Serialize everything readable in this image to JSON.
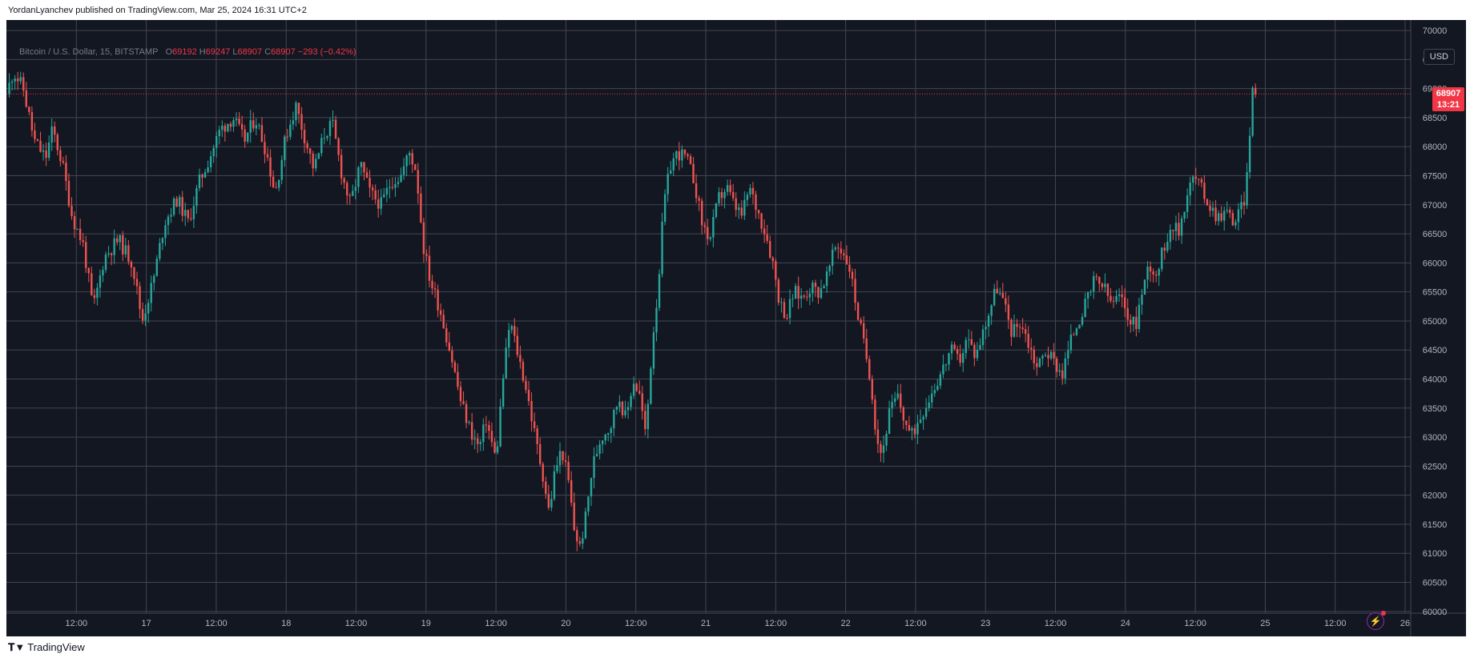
{
  "attribution": "YordanLyanchev published on TradingView.com, Mar 25, 2024 16:31 UTC+2",
  "legend": {
    "symbol": "Bitcoin / U.S. Dollar, 15, BITSTAMP",
    "open_label": "O",
    "open": "69192",
    "high_label": "H",
    "high": "69247",
    "low_label": "L",
    "low": "68907",
    "close_label": "C",
    "close": "68907",
    "change": "−293 (−0.42%)"
  },
  "currency_button": "USD",
  "price_badge": {
    "price": "68907",
    "countdown": "13:21"
  },
  "logo_text": "TradingView",
  "icons": {
    "logo": "tradingview-logo-icon",
    "bolt": "lightning-icon"
  },
  "colors": {
    "background": "#131722",
    "grid": "#434651",
    "up": "#26a69a",
    "down": "#ef5350",
    "axis_text": "#b2b5be",
    "last_price": "#f23645"
  },
  "chart_data": {
    "type": "candlestick",
    "title": "Bitcoin / U.S. Dollar, 15, BITSTAMP",
    "xlabel": "",
    "ylabel": "",
    "ylim": [
      59970,
      70180
    ],
    "grid": true,
    "y_ticks": [
      "60000",
      "60500",
      "61000",
      "61500",
      "62000",
      "62500",
      "63000",
      "63500",
      "64000",
      "64500",
      "65000",
      "65500",
      "66000",
      "66500",
      "67000",
      "67500",
      "68000",
      "68500",
      "69000",
      "69500",
      "70000"
    ],
    "x_ticks": [
      {
        "t": 0.5,
        "label": "12:00"
      },
      {
        "t": 1.0,
        "label": "17"
      },
      {
        "t": 1.5,
        "label": "12:00"
      },
      {
        "t": 2.0,
        "label": "18"
      },
      {
        "t": 2.5,
        "label": "12:00"
      },
      {
        "t": 3.0,
        "label": "19"
      },
      {
        "t": 3.5,
        "label": "12:00"
      },
      {
        "t": 4.0,
        "label": "20"
      },
      {
        "t": 4.5,
        "label": "12:00"
      },
      {
        "t": 5.0,
        "label": "21"
      },
      {
        "t": 5.5,
        "label": "12:00"
      },
      {
        "t": 6.0,
        "label": "22"
      },
      {
        "t": 6.5,
        "label": "12:00"
      },
      {
        "t": 7.0,
        "label": "23"
      },
      {
        "t": 7.5,
        "label": "12:00"
      },
      {
        "t": 8.0,
        "label": "24"
      },
      {
        "t": 8.5,
        "label": "12:00"
      },
      {
        "t": 9.0,
        "label": "25"
      },
      {
        "t": 9.5,
        "label": "12:00"
      },
      {
        "t": 10.0,
        "label": "26"
      }
    ],
    "x_range": [
      0.0,
      10.04
    ],
    "last_price": 68907,
    "series": [
      {
        "name": "BTC/USD close path",
        "points": [
          [
            0.0,
            68900
          ],
          [
            0.05,
            69300
          ],
          [
            0.12,
            69000
          ],
          [
            0.2,
            68100
          ],
          [
            0.28,
            67800
          ],
          [
            0.33,
            68300
          ],
          [
            0.4,
            67700
          ],
          [
            0.47,
            66800
          ],
          [
            0.55,
            66300
          ],
          [
            0.62,
            65200
          ],
          [
            0.7,
            66100
          ],
          [
            0.8,
            66400
          ],
          [
            0.9,
            66000
          ],
          [
            0.97,
            65000
          ],
          [
            1.05,
            65700
          ],
          [
            1.13,
            66700
          ],
          [
            1.22,
            67100
          ],
          [
            1.3,
            66700
          ],
          [
            1.38,
            67400
          ],
          [
            1.45,
            67800
          ],
          [
            1.53,
            68300
          ],
          [
            1.62,
            68500
          ],
          [
            1.7,
            68100
          ],
          [
            1.78,
            68500
          ],
          [
            1.86,
            67900
          ],
          [
            1.92,
            67200
          ],
          [
            2.0,
            68200
          ],
          [
            2.07,
            68700
          ],
          [
            2.14,
            68100
          ],
          [
            2.2,
            67600
          ],
          [
            2.27,
            68200
          ],
          [
            2.33,
            68400
          ],
          [
            2.4,
            67500
          ],
          [
            2.46,
            67000
          ],
          [
            2.53,
            67700
          ],
          [
            2.6,
            67200
          ],
          [
            2.68,
            67000
          ],
          [
            2.75,
            67400
          ],
          [
            2.82,
            67500
          ],
          [
            2.88,
            67900
          ],
          [
            2.93,
            67600
          ],
          [
            2.98,
            66300
          ],
          [
            3.03,
            65700
          ],
          [
            3.1,
            65200
          ],
          [
            3.18,
            64400
          ],
          [
            3.25,
            63600
          ],
          [
            3.32,
            63100
          ],
          [
            3.38,
            62800
          ],
          [
            3.43,
            63300
          ],
          [
            3.5,
            62600
          ],
          [
            3.55,
            64000
          ],
          [
            3.6,
            65000
          ],
          [
            3.66,
            64400
          ],
          [
            3.72,
            63800
          ],
          [
            3.78,
            63000
          ],
          [
            3.84,
            62300
          ],
          [
            3.88,
            61700
          ],
          [
            3.92,
            62400
          ],
          [
            3.97,
            62800
          ],
          [
            4.02,
            62200
          ],
          [
            4.06,
            61400
          ],
          [
            4.1,
            61100
          ],
          [
            4.14,
            61600
          ],
          [
            4.19,
            62500
          ],
          [
            4.25,
            63000
          ],
          [
            4.32,
            63200
          ],
          [
            4.38,
            63700
          ],
          [
            4.43,
            63300
          ],
          [
            4.48,
            64000
          ],
          [
            4.53,
            63700
          ],
          [
            4.57,
            63000
          ],
          [
            4.62,
            64700
          ],
          [
            4.66,
            65600
          ],
          [
            4.7,
            67000
          ],
          [
            4.75,
            67700
          ],
          [
            4.8,
            67900
          ],
          [
            4.86,
            67800
          ],
          [
            4.92,
            67400
          ],
          [
            4.97,
            66700
          ],
          [
            5.03,
            66400
          ],
          [
            5.09,
            67100
          ],
          [
            5.15,
            67300
          ],
          [
            5.2,
            67000
          ],
          [
            5.26,
            66800
          ],
          [
            5.31,
            67300
          ],
          [
            5.37,
            66900
          ],
          [
            5.43,
            66500
          ],
          [
            5.48,
            66000
          ],
          [
            5.53,
            65300
          ],
          [
            5.58,
            65100
          ],
          [
            5.63,
            65500
          ],
          [
            5.69,
            65400
          ],
          [
            5.75,
            65600
          ],
          [
            5.81,
            65500
          ],
          [
            5.87,
            65800
          ],
          [
            5.93,
            66300
          ],
          [
            5.98,
            66200
          ],
          [
            6.03,
            65900
          ],
          [
            6.08,
            65200
          ],
          [
            6.13,
            64600
          ],
          [
            6.18,
            64000
          ],
          [
            6.22,
            63000
          ],
          [
            6.26,
            62700
          ],
          [
            6.31,
            63400
          ],
          [
            6.37,
            63700
          ],
          [
            6.42,
            63300
          ],
          [
            6.47,
            63000
          ],
          [
            6.52,
            63300
          ],
          [
            6.58,
            63600
          ],
          [
            6.64,
            63900
          ],
          [
            6.7,
            64200
          ],
          [
            6.75,
            64500
          ],
          [
            6.81,
            64300
          ],
          [
            6.87,
            64700
          ],
          [
            6.93,
            64400
          ],
          [
            6.98,
            64800
          ],
          [
            7.03,
            65200
          ],
          [
            7.08,
            65600
          ],
          [
            7.13,
            65300
          ],
          [
            7.19,
            64800
          ],
          [
            7.25,
            65000
          ],
          [
            7.31,
            64600
          ],
          [
            7.37,
            64200
          ],
          [
            7.43,
            64500
          ],
          [
            7.49,
            64300
          ],
          [
            7.55,
            64100
          ],
          [
            7.6,
            64600
          ],
          [
            7.66,
            65000
          ],
          [
            7.72,
            65300
          ],
          [
            7.78,
            65700
          ],
          [
            7.84,
            65600
          ],
          [
            7.9,
            65300
          ],
          [
            7.96,
            65400
          ],
          [
            8.02,
            65100
          ],
          [
            8.07,
            64900
          ],
          [
            8.12,
            65500
          ],
          [
            8.17,
            66000
          ],
          [
            8.22,
            65800
          ],
          [
            8.28,
            66300
          ],
          [
            8.33,
            66700
          ],
          [
            8.38,
            66500
          ],
          [
            8.44,
            67200
          ],
          [
            8.49,
            67500
          ],
          [
            8.54,
            67300
          ],
          [
            8.6,
            67000
          ],
          [
            8.66,
            66800
          ],
          [
            8.72,
            66900
          ],
          [
            8.78,
            66700
          ],
          [
            8.83,
            66950
          ],
          [
            8.86,
            67200
          ],
          [
            8.88,
            67900
          ],
          [
            8.9,
            68700
          ],
          [
            8.92,
            69100
          ],
          [
            8.93,
            68907
          ]
        ]
      }
    ]
  }
}
